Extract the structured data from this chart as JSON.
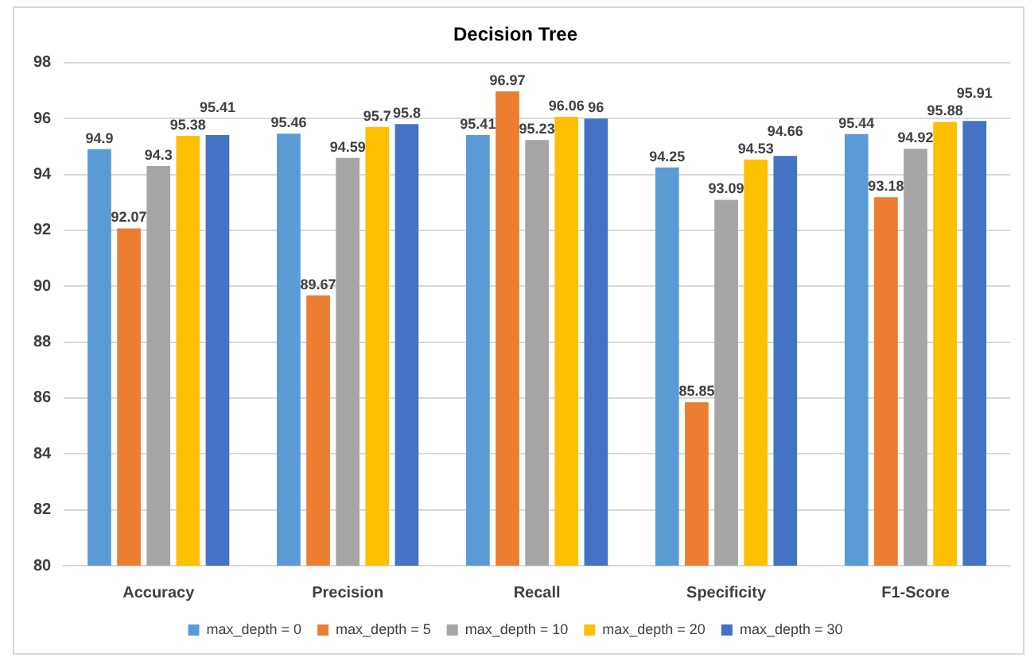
{
  "chart_data": {
    "type": "bar",
    "title": "Decision Tree",
    "categories": [
      "Accuracy",
      "Precision",
      "Recall",
      "Specificity",
      "F1-Score"
    ],
    "series": [
      {
        "name": "max_depth = 0",
        "color": "#5b9bd5",
        "values": [
          94.9,
          95.46,
          95.41,
          94.25,
          95.44
        ]
      },
      {
        "name": "max_depth = 5",
        "color": "#ed7d31",
        "values": [
          92.07,
          89.67,
          96.97,
          85.85,
          93.18
        ]
      },
      {
        "name": "max_depth = 10",
        "color": "#a5a5a5",
        "values": [
          94.3,
          94.59,
          95.23,
          93.09,
          94.92
        ]
      },
      {
        "name": "max_depth = 20",
        "color": "#ffc000",
        "values": [
          95.38,
          95.7,
          96.06,
          94.53,
          95.88
        ]
      },
      {
        "name": "max_depth = 30",
        "color": "#4472c4",
        "values": [
          95.41,
          95.8,
          96,
          94.66,
          95.91
        ]
      }
    ],
    "ylim": [
      80,
      98
    ],
    "yticks": [
      80,
      82,
      84,
      86,
      88,
      90,
      92,
      94,
      96,
      98
    ],
    "grid": "y",
    "legend": "bottom",
    "data_labels": true
  }
}
